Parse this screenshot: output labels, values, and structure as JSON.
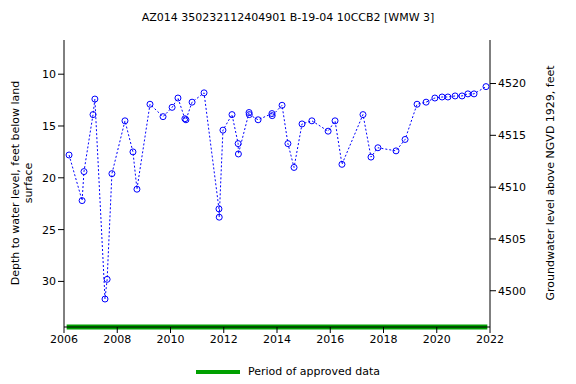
{
  "chart_data": {
    "type": "line",
    "title": "AZ014 350232112404901 B-19-04 10CCB2 [WMW 3]",
    "y_label": "Depth to water level, feet below land surface",
    "y2_label": "Groundwater level above NGVD 1929, feet",
    "x": [
      2006.19,
      2006.68,
      2006.75,
      2007.09,
      2007.16,
      2007.54,
      2007.62,
      2007.8,
      2008.29,
      2008.59,
      2008.74,
      2009.23,
      2009.72,
      2010.06,
      2010.28,
      2010.54,
      2010.58,
      2010.81,
      2011.26,
      2011.82,
      2011.83,
      2011.97,
      2012.31,
      2012.54,
      2012.55,
      2012.95,
      2012.96,
      2013.29,
      2013.81,
      2013.82,
      2014.19,
      2014.41,
      2014.64,
      2014.94,
      2015.31,
      2015.92,
      2016.18,
      2016.44,
      2017.23,
      2017.53,
      2017.79,
      2018.47,
      2018.81,
      2019.26,
      2019.6,
      2019.93,
      2020.2,
      2020.42,
      2020.69,
      2020.95,
      2021.17,
      2021.4,
      2021.85
    ],
    "values": [
      17.8,
      22.2,
      19.4,
      13.9,
      12.4,
      31.7,
      29.8,
      19.6,
      14.5,
      17.5,
      21.1,
      12.9,
      14.1,
      13.2,
      12.3,
      14.3,
      14.4,
      12.7,
      11.8,
      23.0,
      23.8,
      15.4,
      13.9,
      16.7,
      17.7,
      13.7,
      13.9,
      14.4,
      13.8,
      14.0,
      13.0,
      16.7,
      19.0,
      14.8,
      14.5,
      15.5,
      14.5,
      18.7,
      13.9,
      18.0,
      17.1,
      17.4,
      16.3,
      12.9,
      12.7,
      12.3,
      12.2,
      12.2,
      12.1,
      12.1,
      11.9,
      11.9,
      11.2
    ],
    "color": "#0000ff",
    "marker": "circle",
    "line_style": "dotted",
    "xlim": [
      2006,
      2022
    ],
    "xticks": [
      2006,
      2008,
      2010,
      2012,
      2014,
      2016,
      2018,
      2020,
      2022
    ],
    "ylim": [
      34.4,
      6.7
    ],
    "yticks": [
      10,
      15,
      20,
      25,
      30
    ],
    "y2lim": [
      4496.5,
      4524.2
    ],
    "y2ticks": [
      4500,
      4505,
      4510,
      4515,
      4520
    ],
    "approved_period": {
      "name": "Period of approved data",
      "x": [
        2006.1,
        2021.9
      ],
      "color": "#00a000"
    }
  }
}
